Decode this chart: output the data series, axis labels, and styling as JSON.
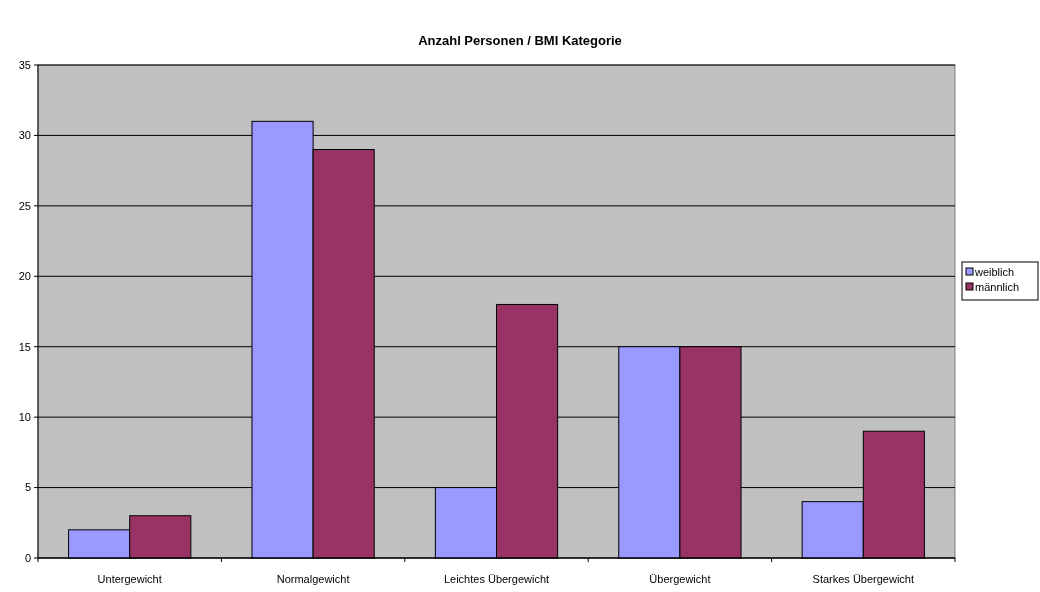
{
  "chart_data": {
    "type": "bar",
    "title": "Anzahl Personen / BMI Kategorie",
    "categories": [
      "Untergewicht",
      "Normalgewicht",
      "Leichtes Übergewicht",
      "Übergewicht",
      "Starkes Übergewicht"
    ],
    "series": [
      {
        "name": "weiblich",
        "color": "#9999ff",
        "values": [
          2,
          31,
          5,
          15,
          4
        ]
      },
      {
        "name": "männlich",
        "color": "#993366",
        "values": [
          3,
          29,
          18,
          15,
          9
        ]
      }
    ],
    "ylim": [
      0,
      35
    ],
    "yticks": [
      0,
      5,
      10,
      15,
      20,
      25,
      30,
      35
    ],
    "grid": "y",
    "legend": "right"
  }
}
